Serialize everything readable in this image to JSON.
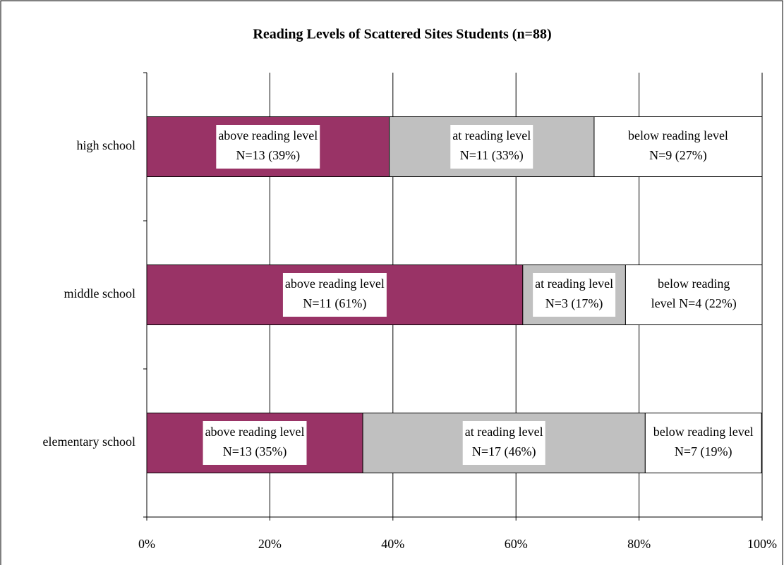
{
  "chart_data": {
    "type": "stacked-bar-horizontal",
    "title": "Reading Levels of Scattered Sites Students (n=88)",
    "categories": [
      "high school",
      "middle school",
      "elementary school"
    ],
    "series": [
      {
        "color": "#993366",
        "values": [
          39.4,
          61.1,
          35.1
        ],
        "value_labels": [
          [
            "above reading level",
            "N=13 (39%)"
          ],
          [
            "above reading level",
            "N=11 (61%)"
          ],
          [
            "above reading level",
            "N=13 (35%)"
          ]
        ]
      },
      {
        "color": "#c0c0c0",
        "values": [
          33.3,
          16.7,
          45.9
        ],
        "value_labels": [
          [
            "at reading level",
            "N=11 (33%)"
          ],
          [
            "at reading level",
            "N=3 (17%)"
          ],
          [
            "at reading level",
            "N=17 (46%)"
          ]
        ]
      },
      {
        "color": "#ffffff",
        "values": [
          27.3,
          22.2,
          18.9
        ],
        "value_labels": [
          [
            "below reading level",
            "N=9 (27%)"
          ],
          [
            "below reading",
            "level N=4 (22%)"
          ],
          [
            "below reading level",
            "N=7 (19%)"
          ]
        ]
      }
    ],
    "xlim": [
      0,
      100
    ],
    "xticks": [
      {
        "value": 0,
        "label": "0%"
      },
      {
        "value": 20,
        "label": "20%"
      },
      {
        "value": 40,
        "label": "40%"
      },
      {
        "value": 60,
        "label": "60%"
      },
      {
        "value": 80,
        "label": "80%"
      },
      {
        "value": 100,
        "label": "100%"
      }
    ],
    "grid": true
  }
}
